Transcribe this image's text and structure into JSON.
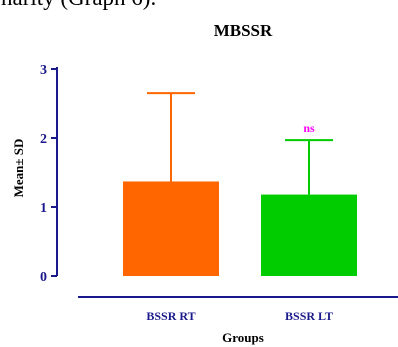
{
  "cropped_text": "narity (Graph 6).",
  "chart_data": {
    "type": "bar",
    "title": "MBSSR",
    "xlabel": "Groups",
    "ylabel": "Mean± SD",
    "ylim": [
      0,
      3
    ],
    "yticks": [
      "0",
      "1",
      "2",
      "3"
    ],
    "categories": [
      "BSSR RT",
      "BSSR LT"
    ],
    "values": [
      1.37,
      1.18
    ],
    "error_sd": [
      1.28,
      0.79
    ],
    "annotations": [
      {
        "category": "BSSR LT",
        "text": "ns"
      }
    ],
    "grid": false,
    "colors": {
      "bars": [
        "#ff6600",
        "#00cc00"
      ],
      "axis": "#1a1a8c",
      "text": "#1a1a8c",
      "annotation": "#ff00ff"
    }
  }
}
